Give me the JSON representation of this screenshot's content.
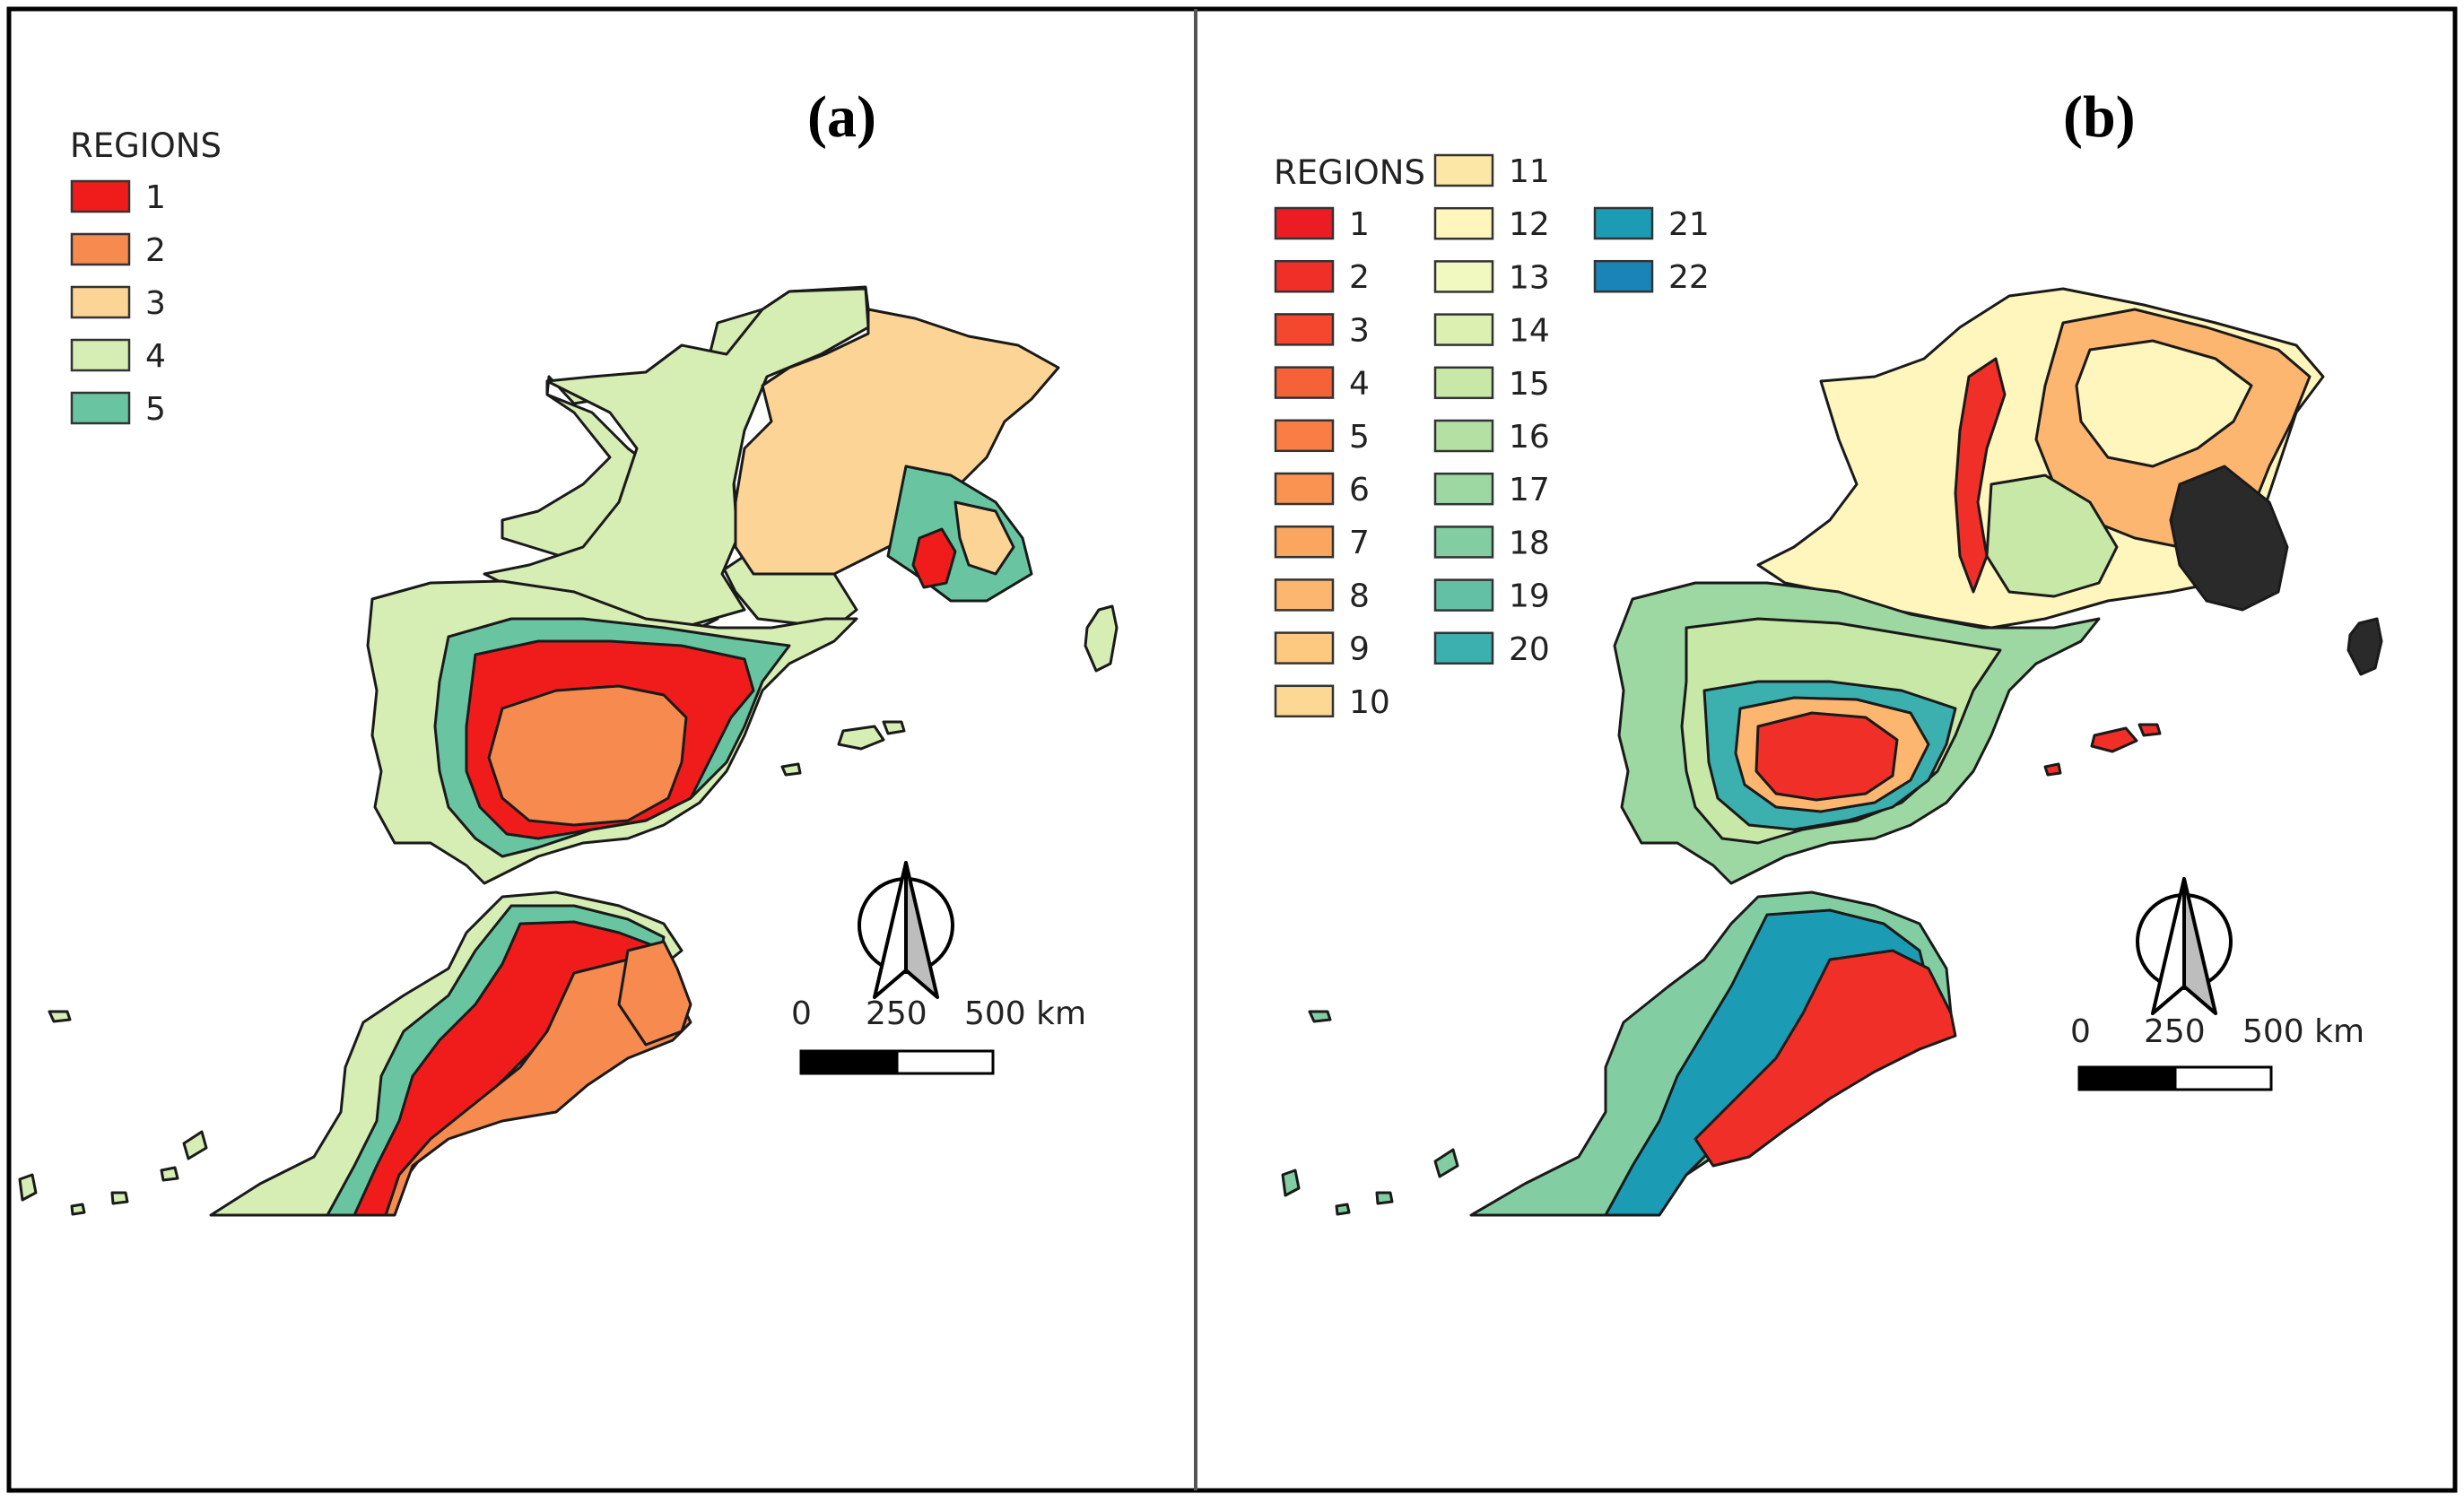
{
  "panels": [
    {
      "label": "(a)",
      "legend_title": "REGIONS",
      "regions": [
        {
          "label": "1",
          "color": "#f01c1c"
        },
        {
          "label": "2",
          "color": "#f68a4f"
        },
        {
          "label": "3",
          "color": "#fcd596"
        },
        {
          "label": "4",
          "color": "#d6edb4"
        },
        {
          "label": "5",
          "color": "#69c5a1"
        }
      ],
      "scale": {
        "labels": [
          "0",
          "250",
          "500 km"
        ]
      }
    },
    {
      "label": "(b)",
      "legend_title": "REGIONS",
      "regions": [
        {
          "label": "1",
          "color": "#ec1c24"
        },
        {
          "label": "2",
          "color": "#f02f28"
        },
        {
          "label": "3",
          "color": "#f4472d"
        },
        {
          "label": "4",
          "color": "#f66238"
        },
        {
          "label": "5",
          "color": "#f97d44"
        },
        {
          "label": "6",
          "color": "#fa9352"
        },
        {
          "label": "7",
          "color": "#fba65e"
        },
        {
          "label": "8",
          "color": "#fcb66f"
        },
        {
          "label": "9",
          "color": "#fdc87f"
        },
        {
          "label": "10",
          "color": "#fdd794"
        },
        {
          "label": "11",
          "color": "#fde7a7"
        },
        {
          "label": "12",
          "color": "#fef6bd"
        },
        {
          "label": "13",
          "color": "#f1f8c0"
        },
        {
          "label": "14",
          "color": "#dcf0b2"
        },
        {
          "label": "15",
          "color": "#c8e8a8"
        },
        {
          "label": "16",
          "color": "#b5e0a3"
        },
        {
          "label": "17",
          "color": "#9dd8a2"
        },
        {
          "label": "18",
          "color": "#82cea2"
        },
        {
          "label": "19",
          "color": "#63c0a5"
        },
        {
          "label": "20",
          "color": "#3bb0ae"
        },
        {
          "label": "21",
          "color": "#1b9cb4"
        },
        {
          "label": "22",
          "color": "#1a84b8"
        }
      ],
      "scale": {
        "labels": [
          "0",
          "250",
          "500 km"
        ]
      }
    }
  ],
  "map_colors": {
    "a_france_west": "#d6edb4",
    "a_france_east": "#fcd596",
    "a_iberia_outer": "#d6edb4",
    "a_iberia_ring": "#69c5a1",
    "a_iberia_red": "#f01c1c",
    "a_iberia_core": "#f68a4f",
    "a_morocco_outer": "#d6edb4",
    "a_morocco_green": "#69c5a1",
    "a_morocco_red": "#f01c1c",
    "a_morocco_core": "#f68a4f",
    "b_france_base": "#fef6bd",
    "b_france_east": "#fcb66f",
    "b_iberia_base": "#9dd8a2",
    "b_iberia_mid": "#c8e8a8",
    "b_iberia_ring": "#3bb0ae",
    "b_iberia_core": "#f02f28",
    "b_morocco_outer": "#82cea2",
    "b_morocco_blue": "#1b9cb4",
    "b_morocco_core": "#f02f28"
  }
}
